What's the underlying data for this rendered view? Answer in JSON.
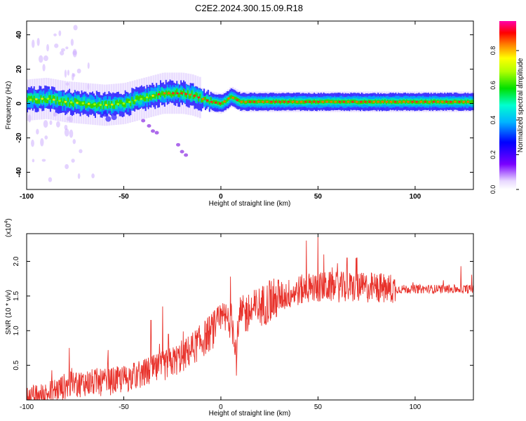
{
  "figure": {
    "title": "C2E2.2024.300.15.09.R18"
  },
  "chart_data": [
    {
      "type": "heatmap",
      "xlabel": "Height of straight line (km)",
      "ylabel": "Frequency (Hz)",
      "xlim": [
        -100,
        130
      ],
      "ylim": [
        -50,
        48
      ],
      "xticks": [
        -100,
        -50,
        0,
        50,
        100
      ],
      "yticks": [
        -40,
        -20,
        0,
        20,
        40
      ],
      "colorbar": {
        "label": "Normalized spectral amplitude",
        "range": [
          0,
          0.97
        ],
        "ticks": [
          0.0,
          0.2,
          0.4,
          0.6,
          0.8
        ],
        "colormap": "rainbow (white → purple → blue → cyan → green → yellow → red → magenta)"
      },
      "ridge": {
        "description": "peak frequency vs height",
        "x": [
          -100,
          -90,
          -80,
          -70,
          -60,
          -50,
          -40,
          -30,
          -20,
          -15,
          -10,
          -5,
          0,
          3,
          5,
          10,
          20,
          40,
          60,
          80,
          100,
          130
        ],
        "y": [
          2,
          3,
          1,
          0,
          -1,
          0,
          3,
          6,
          6,
          5,
          3,
          1,
          0,
          2,
          4,
          1,
          1,
          1,
          1,
          1,
          1,
          1
        ]
      },
      "grid": false
    },
    {
      "type": "line",
      "xlabel": "Height of straight line (km)",
      "ylabel": "SNR (10 * v/v)",
      "scale_label": "(x10",
      "scale_exp": "4",
      "xlim": [
        -100,
        130
      ],
      "ylim": [
        0,
        2.4
      ],
      "xticks": [
        -100,
        -50,
        0,
        50,
        100
      ],
      "yticks": [
        0.5,
        1.0,
        1.5,
        2.0
      ],
      "series": [
        {
          "color": "#e8322b",
          "envelope": {
            "x": [
              -100,
              -90,
              -80,
              -70,
              -60,
              -50,
              -40,
              -30,
              -20,
              -10,
              0,
              5,
              8,
              10,
              20,
              30,
              40,
              50,
              60,
              70,
              80,
              90,
              100,
              110,
              120,
              130
            ],
            "y": [
              0.01,
              0.08,
              0.2,
              0.25,
              0.25,
              0.3,
              0.38,
              0.48,
              0.62,
              0.85,
              1.12,
              1.18,
              0.78,
              1.2,
              1.35,
              1.48,
              1.58,
              1.63,
              1.63,
              1.62,
              1.62,
              1.6,
              1.6,
              1.6,
              1.6,
              1.6
            ]
          },
          "spikes": [
            {
              "x": -78,
              "y": 0.75
            },
            {
              "x": -58,
              "y": 0.72
            },
            {
              "x": -36,
              "y": 1.15
            },
            {
              "x": -30,
              "y": 1.35
            },
            {
              "x": -27,
              "y": 0.95
            },
            {
              "x": -15,
              "y": 0.92
            },
            {
              "x": 5,
              "y": 1.78
            },
            {
              "x": 8,
              "y": 0.35
            },
            {
              "x": 25,
              "y": 1.72
            },
            {
              "x": 44,
              "y": 2.3
            },
            {
              "x": 50,
              "y": 2.35
            },
            {
              "x": 53,
              "y": 2.1
            },
            {
              "x": 65,
              "y": 2.05
            },
            {
              "x": 70,
              "y": 2.05
            }
          ]
        }
      ],
      "grid": false
    }
  ]
}
